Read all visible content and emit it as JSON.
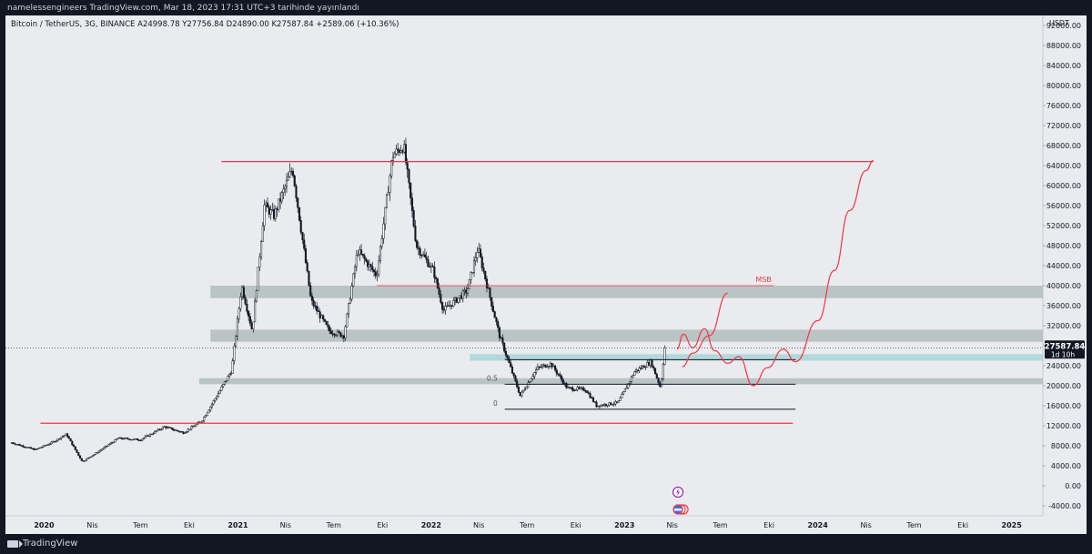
{
  "publication": "namelessengineers TradingView.com, Mar 18, 2023 17:31 UTC+3 tarihinde yayınlandı",
  "symbol_line": "Bitcoin / TetherUS, 3G, BINANCE  A24998.78  Y27756.84  D24890.00  K27587.84  +2589.06 (+10.36%)",
  "brand": "TradingView",
  "colors": {
    "background": "#e9ebee",
    "frame": "#131722",
    "candle": "#131722",
    "drawing_red": "#f23645",
    "zone": "#b2bdbd",
    "highlight_zone": "#a8d5d8",
    "price_label_bg": "#131722"
  },
  "chart_data": {
    "type": "candlestick",
    "currency": "USDT",
    "y_axis_ticks": [
      "92000.00",
      "88000.00",
      "84000.00",
      "80000.00",
      "76000.00",
      "72000.00",
      "68000.00",
      "64000.00",
      "60000.00",
      "56000.00",
      "52000.00",
      "48000.00",
      "44000.00",
      "40000.00",
      "36000.00",
      "32000.00",
      "28000.00",
      "24000.00",
      "20000.00",
      "16000.00",
      "12000.00",
      "8000.00",
      "4000.00",
      "0.00",
      "-4000.00"
    ],
    "y_range": [
      -6000,
      94000
    ],
    "x_axis_ticks": [
      "2020",
      "Nis",
      "Tem",
      "Eki",
      "2021",
      "Nis",
      "Tem",
      "Eki",
      "2022",
      "Nis",
      "Tem",
      "Eki",
      "2023",
      "Nis",
      "Tem",
      "Eki",
      "2024",
      "Nis",
      "Tem",
      "Eki",
      "2025"
    ],
    "x_range": [
      "2019-10-20",
      "2025-03-01"
    ],
    "series": [
      {
        "points": [
          [
            "2019-11-01",
            8600
          ],
          [
            "2019-12-15",
            7200
          ],
          [
            "2020-01-15",
            8600
          ],
          [
            "2020-02-12",
            10300
          ],
          [
            "2020-03-13",
            4800
          ],
          [
            "2020-04-15",
            7000
          ],
          [
            "2020-05-20",
            9500
          ],
          [
            "2020-07-01",
            9200
          ],
          [
            "2020-08-15",
            11800
          ],
          [
            "2020-09-20",
            10600
          ],
          [
            "2020-10-25",
            13000
          ],
          [
            "2020-11-25",
            18500
          ],
          [
            "2020-12-20",
            23000
          ],
          [
            "2021-01-08",
            40000
          ],
          [
            "2021-01-28",
            31000
          ],
          [
            "2021-02-20",
            56000
          ],
          [
            "2021-03-10",
            54000
          ],
          [
            "2021-04-14",
            63500
          ],
          [
            "2021-05-19",
            37000
          ],
          [
            "2021-06-22",
            31000
          ],
          [
            "2021-07-20",
            30000
          ],
          [
            "2021-08-15",
            47000
          ],
          [
            "2021-09-20",
            42000
          ],
          [
            "2021-10-20",
            66000
          ],
          [
            "2021-11-10",
            68000
          ],
          [
            "2021-12-04",
            48000
          ],
          [
            "2022-01-05",
            43000
          ],
          [
            "2022-01-24",
            35000
          ],
          [
            "2022-03-10",
            39000
          ],
          [
            "2022-03-30",
            47500
          ],
          [
            "2022-05-10",
            30000
          ],
          [
            "2022-06-18",
            18000
          ],
          [
            "2022-07-20",
            23500
          ],
          [
            "2022-08-15",
            24400
          ],
          [
            "2022-09-15",
            19500
          ],
          [
            "2022-10-20",
            19200
          ],
          [
            "2022-11-09",
            16000
          ],
          [
            "2022-12-20",
            16600
          ],
          [
            "2023-01-20",
            22800
          ],
          [
            "2023-02-20",
            24800
          ],
          [
            "2023-03-10",
            19600
          ],
          [
            "2023-03-18",
            27587
          ]
        ]
      }
    ],
    "last_price": "27587.84",
    "last_price_countdown": "1d 10h",
    "annotations": [
      {
        "kind": "hline",
        "color": "red",
        "price": 64800,
        "from": "2020-12-01",
        "to": "2024-04-15"
      },
      {
        "kind": "hline",
        "color": "red",
        "price": 12500,
        "from": "2019-12-25",
        "to": "2023-11-15"
      },
      {
        "kind": "hline",
        "color": "red",
        "price": 40000,
        "from": "2021-09-20",
        "to": "2023-10-10",
        "label": "MSB"
      },
      {
        "kind": "zone",
        "color": "grey",
        "price_top": 40000,
        "price_bottom": 37500,
        "from": "2020-11-10",
        "to": "2025-03-01"
      },
      {
        "kind": "zone",
        "color": "grey",
        "price_top": 31200,
        "price_bottom": 28800,
        "from": "2020-11-10",
        "to": "2025-03-01"
      },
      {
        "kind": "zone",
        "color": "grey",
        "price_top": 21500,
        "price_bottom": 20300,
        "from": "2020-10-20",
        "to": "2025-03-01"
      },
      {
        "kind": "zone",
        "color": "teal",
        "price_top": 26300,
        "price_bottom": 25000,
        "from": "2022-03-15",
        "to": "2025-03-01"
      },
      {
        "kind": "fib",
        "levels": [
          {
            "label": "",
            "price": 25200
          },
          {
            "label": "0.5",
            "price": 20300
          },
          {
            "label": "0",
            "price": 15300
          }
        ],
        "from": "2022-05-20",
        "to": "2023-11-20"
      }
    ],
    "projections": [
      {
        "points": [
          [
            "2023-04-20",
            23800
          ],
          [
            "2023-05-10",
            26500
          ],
          [
            "2023-06-10",
            30000
          ],
          [
            "2023-07-15",
            38500
          ]
        ]
      },
      {
        "points": [
          [
            "2023-04-10",
            27300
          ],
          [
            "2023-04-22",
            30300
          ],
          [
            "2023-05-10",
            27600
          ],
          [
            "2023-06-01",
            31400
          ],
          [
            "2023-06-20",
            27000
          ],
          [
            "2023-07-15",
            24500
          ],
          [
            "2023-08-05",
            25800
          ],
          [
            "2023-09-01",
            20000
          ],
          [
            "2023-09-28",
            23600
          ],
          [
            "2023-10-28",
            27300
          ],
          [
            "2023-11-20",
            24800
          ],
          [
            "2024-01-01",
            33000
          ],
          [
            "2024-02-01",
            43000
          ],
          [
            "2024-03-01",
            55000
          ],
          [
            "2024-04-01",
            63000
          ],
          [
            "2024-04-15",
            65000
          ]
        ]
      }
    ]
  }
}
